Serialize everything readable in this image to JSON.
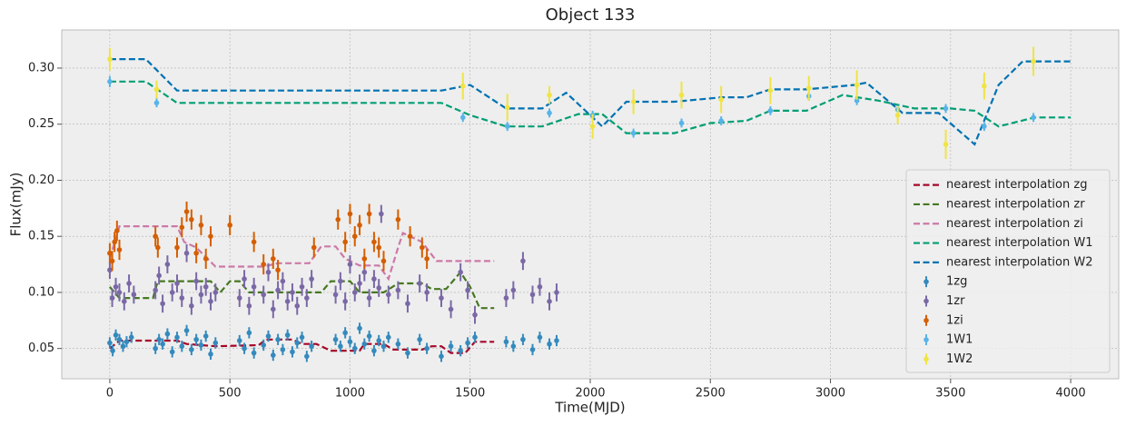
{
  "chart_data": {
    "type": "errorbar",
    "title": "Object 133",
    "xlabel": "Time(MJD)",
    "ylabel": "Flux(mJy)",
    "xlim": [
      -200,
      4200
    ],
    "ylim": [
      0.023,
      0.334
    ],
    "xticks": [
      0,
      500,
      1000,
      1500,
      2000,
      2500,
      3000,
      3500,
      4000
    ],
    "yticks": [
      {
        "value": 0.05,
        "label": "0.05"
      },
      {
        "value": 0.1,
        "label": "0.10"
      },
      {
        "value": 0.15,
        "label": "0.15"
      },
      {
        "value": 0.2,
        "label": "0.20"
      },
      {
        "value": 0.25,
        "label": "0.25"
      },
      {
        "value": 0.3,
        "label": "0.30"
      }
    ],
    "grid": true,
    "legend_loc": "lower right",
    "series": [
      {
        "name": "nearest interpolation zg",
        "kind": "line",
        "color": "#A60628",
        "x": [
          0,
          40,
          280,
          320,
          440,
          620,
          650,
          760,
          800,
          860,
          920,
          1040,
          1060,
          1140,
          1180,
          1300,
          1340,
          1380,
          1420,
          1480,
          1520,
          1600
        ],
        "values": [
          0.05,
          0.057,
          0.057,
          0.054,
          0.052,
          0.053,
          0.058,
          0.058,
          0.054,
          0.054,
          0.048,
          0.048,
          0.054,
          0.054,
          0.049,
          0.049,
          0.052,
          0.052,
          0.046,
          0.046,
          0.056,
          0.056
        ]
      },
      {
        "name": "nearest interpolation zr",
        "kind": "line",
        "color": "#467821",
        "x": [
          0,
          40,
          180,
          200,
          420,
          460,
          500,
          540,
          580,
          880,
          920,
          1000,
          1040,
          1140,
          1200,
          1300,
          1340,
          1400,
          1460,
          1500,
          1540,
          1600
        ],
        "values": [
          0.105,
          0.095,
          0.095,
          0.11,
          0.11,
          0.1,
          0.11,
          0.11,
          0.1,
          0.1,
          0.11,
          0.11,
          0.1,
          0.1,
          0.108,
          0.108,
          0.103,
          0.103,
          0.118,
          0.105,
          0.086,
          0.086
        ]
      },
      {
        "name": "nearest interpolation zi",
        "kind": "line",
        "color": "#CC79A7",
        "x": [
          0,
          40,
          280,
          310,
          360,
          440,
          640,
          700,
          830,
          880,
          940,
          980,
          1040,
          1120,
          1160,
          1200,
          1220,
          1300,
          1360,
          1600
        ],
        "values": [
          0.13,
          0.159,
          0.159,
          0.145,
          0.14,
          0.123,
          0.123,
          0.126,
          0.126,
          0.141,
          0.141,
          0.13,
          0.124,
          0.124,
          0.112,
          0.14,
          0.153,
          0.145,
          0.128,
          0.128
        ]
      },
      {
        "name": "nearest interpolation W1",
        "kind": "line",
        "color": "#009E73",
        "x": [
          0,
          150,
          280,
          1380,
          1500,
          1650,
          1800,
          1950,
          2050,
          2150,
          2350,
          2500,
          2650,
          2750,
          2900,
          3050,
          3200,
          3350,
          3500,
          3600,
          3700,
          3850,
          4000
        ],
        "values": [
          0.288,
          0.288,
          0.269,
          0.269,
          0.258,
          0.248,
          0.248,
          0.259,
          0.259,
          0.242,
          0.242,
          0.251,
          0.253,
          0.262,
          0.262,
          0.276,
          0.271,
          0.264,
          0.264,
          0.262,
          0.248,
          0.256,
          0.256
        ]
      },
      {
        "name": "nearest interpolation W2",
        "kind": "line",
        "color": "#0072B2",
        "x": [
          0,
          150,
          280,
          1380,
          1500,
          1650,
          1800,
          1900,
          2050,
          2150,
          2350,
          2550,
          2650,
          2750,
          2900,
          3100,
          3150,
          3300,
          3450,
          3600,
          3700,
          3800,
          4000
        ],
        "values": [
          0.308,
          0.308,
          0.28,
          0.28,
          0.285,
          0.264,
          0.264,
          0.278,
          0.248,
          0.27,
          0.27,
          0.274,
          0.274,
          0.281,
          0.281,
          0.285,
          0.287,
          0.26,
          0.26,
          0.232,
          0.285,
          0.306,
          0.306
        ]
      },
      {
        "name": "1zg",
        "kind": "errorbar",
        "color": "#348ABD",
        "yerr": 0.005,
        "x": [
          0,
          12,
          25,
          40,
          55,
          70,
          90,
          190,
          205,
          220,
          240,
          260,
          280,
          300,
          320,
          340,
          360,
          380,
          400,
          420,
          440,
          540,
          560,
          580,
          600,
          640,
          660,
          680,
          700,
          720,
          740,
          760,
          780,
          800,
          820,
          840,
          940,
          960,
          980,
          1000,
          1020,
          1040,
          1060,
          1080,
          1100,
          1120,
          1140,
          1160,
          1200,
          1240,
          1290,
          1320,
          1380,
          1420,
          1460,
          1490,
          1520,
          1650,
          1680,
          1720,
          1760,
          1790,
          1830,
          1860
        ],
        "values": [
          0.055,
          0.048,
          0.062,
          0.058,
          0.052,
          0.056,
          0.06,
          0.05,
          0.058,
          0.054,
          0.063,
          0.047,
          0.06,
          0.052,
          0.066,
          0.049,
          0.058,
          0.053,
          0.061,
          0.045,
          0.055,
          0.057,
          0.05,
          0.064,
          0.046,
          0.053,
          0.061,
          0.044,
          0.058,
          0.049,
          0.062,
          0.047,
          0.055,
          0.06,
          0.043,
          0.052,
          0.058,
          0.052,
          0.064,
          0.056,
          0.05,
          0.068,
          0.054,
          0.061,
          0.048,
          0.057,
          0.052,
          0.06,
          0.054,
          0.046,
          0.058,
          0.05,
          0.043,
          0.052,
          0.048,
          0.055,
          0.06,
          0.056,
          0.052,
          0.058,
          0.049,
          0.06,
          0.054,
          0.057
        ]
      },
      {
        "name": "1zr",
        "kind": "errorbar",
        "color": "#7A68A6",
        "yerr": 0.008,
        "x": [
          0,
          10,
          25,
          40,
          60,
          80,
          100,
          190,
          205,
          220,
          240,
          260,
          280,
          300,
          320,
          340,
          360,
          380,
          400,
          420,
          440,
          540,
          560,
          580,
          600,
          640,
          660,
          680,
          700,
          720,
          740,
          760,
          780,
          800,
          820,
          840,
          940,
          960,
          980,
          1000,
          1020,
          1040,
          1060,
          1080,
          1100,
          1120,
          1130,
          1160,
          1200,
          1240,
          1290,
          1320,
          1380,
          1420,
          1460,
          1490,
          1520,
          1650,
          1680,
          1720,
          1760,
          1790,
          1830,
          1860
        ],
        "values": [
          0.12,
          0.095,
          0.105,
          0.1,
          0.092,
          0.108,
          0.098,
          0.102,
          0.115,
          0.09,
          0.125,
          0.1,
          0.108,
          0.095,
          0.135,
          0.088,
          0.11,
          0.098,
          0.105,
          0.092,
          0.1,
          0.095,
          0.112,
          0.088,
          0.105,
          0.098,
          0.118,
          0.085,
          0.102,
          0.11,
          0.092,
          0.1,
          0.088,
          0.105,
          0.095,
          0.112,
          0.098,
          0.11,
          0.092,
          0.125,
          0.1,
          0.108,
          0.118,
          0.095,
          0.112,
          0.104,
          0.17,
          0.098,
          0.102,
          0.09,
          0.108,
          0.1,
          0.095,
          0.085,
          0.118,
          0.102,
          0.08,
          0.095,
          0.102,
          0.128,
          0.098,
          0.105,
          0.092,
          0.1
        ]
      },
      {
        "name": "1zi",
        "kind": "errorbar",
        "color": "#D55E00",
        "yerr": 0.009,
        "x": [
          0,
          10,
          20,
          30,
          40,
          190,
          200,
          280,
          300,
          320,
          340,
          360,
          380,
          400,
          420,
          500,
          600,
          640,
          680,
          700,
          850,
          950,
          980,
          1000,
          1020,
          1040,
          1060,
          1080,
          1100,
          1120,
          1140,
          1200,
          1250,
          1300,
          1320
        ],
        "values": [
          0.135,
          0.128,
          0.145,
          0.155,
          0.138,
          0.15,
          0.14,
          0.14,
          0.158,
          0.172,
          0.165,
          0.135,
          0.16,
          0.13,
          0.15,
          0.16,
          0.145,
          0.125,
          0.13,
          0.12,
          0.14,
          0.165,
          0.145,
          0.17,
          0.15,
          0.16,
          0.13,
          0.17,
          0.145,
          0.14,
          0.128,
          0.165,
          0.15,
          0.14,
          0.13
        ]
      },
      {
        "name": "1W1",
        "kind": "errorbar",
        "color": "#56B4E9",
        "x": [
          0,
          195,
          1470,
          1655,
          1830,
          2010,
          2180,
          2380,
          2545,
          2750,
          2910,
          3110,
          3280,
          3480,
          3640,
          3845
        ],
        "values": [
          0.288,
          0.269,
          0.256,
          0.248,
          0.26,
          0.258,
          0.242,
          0.251,
          0.253,
          0.262,
          0.275,
          0.271,
          0.263,
          0.264,
          0.248,
          0.256
        ],
        "errors": [
          0.005,
          0.004,
          0.004,
          0.004,
          0.004,
          0.004,
          0.004,
          0.004,
          0.004,
          0.004,
          0.004,
          0.004,
          0.004,
          0.004,
          0.004,
          0.004
        ]
      },
      {
        "name": "1W2",
        "kind": "errorbar",
        "color": "#F0E442",
        "x": [
          0,
          195,
          1470,
          1655,
          1830,
          2010,
          2180,
          2380,
          2545,
          2750,
          2910,
          3110,
          3280,
          3480,
          3640,
          3845
        ],
        "values": [
          0.308,
          0.281,
          0.284,
          0.265,
          0.276,
          0.248,
          0.27,
          0.276,
          0.272,
          0.28,
          0.282,
          0.285,
          0.258,
          0.232,
          0.284,
          0.306
        ],
        "errors": [
          0.01,
          0.008,
          0.012,
          0.012,
          0.008,
          0.011,
          0.011,
          0.012,
          0.012,
          0.012,
          0.011,
          0.013,
          0.008,
          0.013,
          0.012,
          0.013
        ]
      }
    ]
  }
}
